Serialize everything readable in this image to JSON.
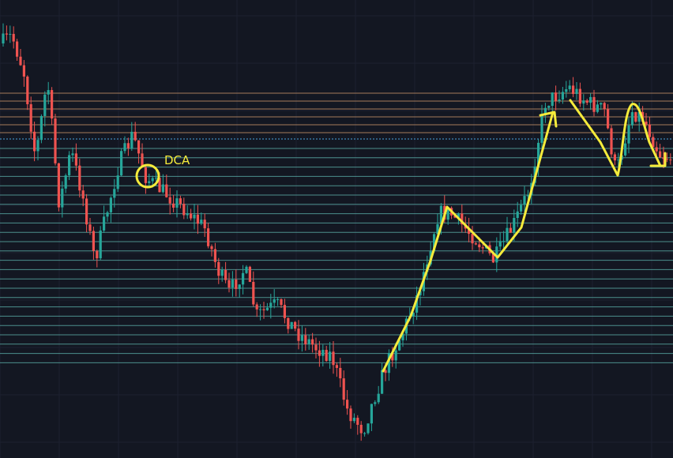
{
  "annotation": {
    "label": "DCA"
  }
}
